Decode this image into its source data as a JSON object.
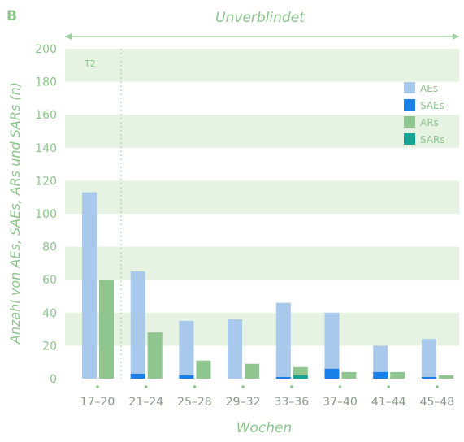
{
  "panel_label": "B",
  "header": {
    "title": "Unverblindet"
  },
  "colors": {
    "text_green": "#8cc58c",
    "band": "#e6f2e2",
    "ae": "#a9c9ec",
    "sae": "#1a7fe6",
    "ar": "#8fc68f",
    "sar": "#17a394"
  },
  "chart_data": {
    "type": "bar",
    "categories": [
      "17–20",
      "21–24",
      "25–28",
      "29–32",
      "33–36",
      "37–40",
      "41–44",
      "45–48"
    ],
    "series": [
      {
        "name": "AEs",
        "values": [
          113,
          65,
          35,
          36,
          46,
          40,
          20,
          24
        ]
      },
      {
        "name": "SAEs",
        "values": [
          0,
          3,
          2,
          0,
          1,
          6,
          4,
          1
        ]
      },
      {
        "name": "ARs",
        "values": [
          60,
          28,
          11,
          9,
          7,
          4,
          4,
          2
        ]
      },
      {
        "name": "SARs",
        "values": [
          0,
          0,
          0,
          0,
          2,
          0,
          0,
          0
        ]
      }
    ],
    "xlabel": "Wochen",
    "ylabel": "Anzahl von AEs, SAEs, ARs und SARs (n)",
    "ylim": [
      0,
      200
    ],
    "yticks": [
      0,
      20,
      40,
      60,
      80,
      100,
      120,
      140,
      160,
      180,
      200
    ],
    "annotation": "T2",
    "legend_position": "top-right"
  }
}
